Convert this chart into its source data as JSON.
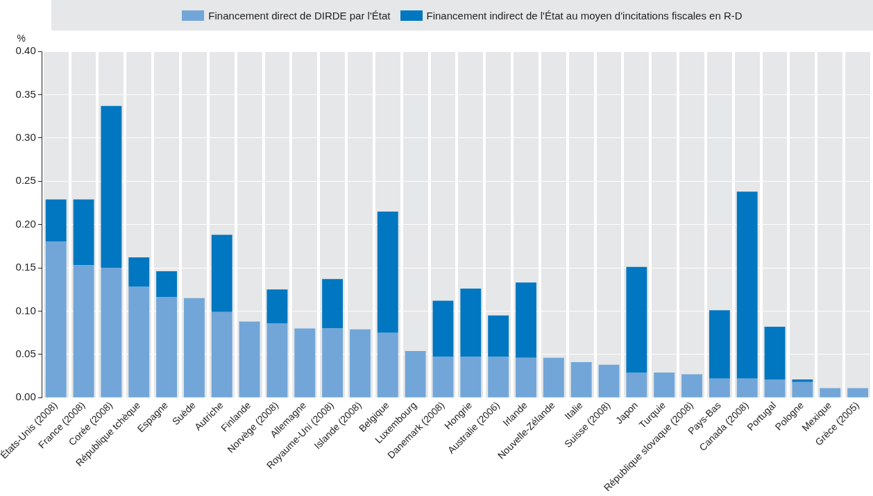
{
  "chart_data": {
    "type": "bar",
    "stacked": true,
    "ylabel": "%",
    "legend": "top",
    "grid": true,
    "categories": [
      "États-Unis (2008)",
      "France (2008)",
      "Corée (2008)",
      "République tchèque",
      "Espagne",
      "Suède",
      "Autriche",
      "Finlande",
      "Norvège (2008)",
      "Allemagne",
      "Royaume-Uni (2008)",
      "Islande (2008)",
      "Belgique",
      "Luxembourg",
      "Danemark (2008)",
      "Hongrie",
      "Australie (2006)",
      "Irlande",
      "Nouvelle-Zélande",
      "Italie",
      "Suisse (2008)",
      "Japon",
      "Turquie",
      "République slovaque (2008)",
      "Pays-Bas",
      "Canada (2008)",
      "Portugal",
      "Pologne",
      "Mexique",
      "Grèce (2005)"
    ],
    "series": [
      {
        "name": "Financement direct de DIRDE par l'État",
        "color": "#72a6d8",
        "values": [
          0.18,
          0.153,
          0.15,
          0.128,
          0.116,
          0.115,
          0.099,
          0.088,
          0.086,
          0.08,
          0.08,
          0.079,
          0.075,
          0.054,
          0.047,
          0.047,
          0.047,
          0.046,
          0.046,
          0.041,
          0.038,
          0.029,
          0.029,
          0.027,
          0.022,
          0.022,
          0.021,
          0.018,
          0.011,
          0.011
        ]
      },
      {
        "name": "Financement indirect de l'État au moyen d'incitations fiscales en R-D",
        "color": "#0077c0",
        "values": [
          0.049,
          0.076,
          0.187,
          0.034,
          0.03,
          null,
          0.089,
          null,
          0.039,
          null,
          0.057,
          null,
          0.14,
          null,
          0.065,
          0.079,
          0.048,
          0.087,
          null,
          null,
          null,
          0.122,
          null,
          null,
          0.079,
          0.216,
          0.061,
          0.003,
          null,
          null
        ]
      }
    ],
    "ylim": [
      0,
      0.4
    ],
    "yticks": [
      {
        "value": 0,
        "label": "0.00"
      },
      {
        "value": 0.05,
        "label": "0.05"
      },
      {
        "value": 0.1,
        "label": "0.10"
      },
      {
        "value": 0.15,
        "label": "0.15"
      },
      {
        "value": 0.2,
        "label": "0.20"
      },
      {
        "value": 0.25,
        "label": "0.25"
      },
      {
        "value": 0.3,
        "label": "0.30"
      },
      {
        "value": 0.35,
        "label": "0.35"
      },
      {
        "value": 0.4,
        "label": "0.40"
      }
    ]
  }
}
